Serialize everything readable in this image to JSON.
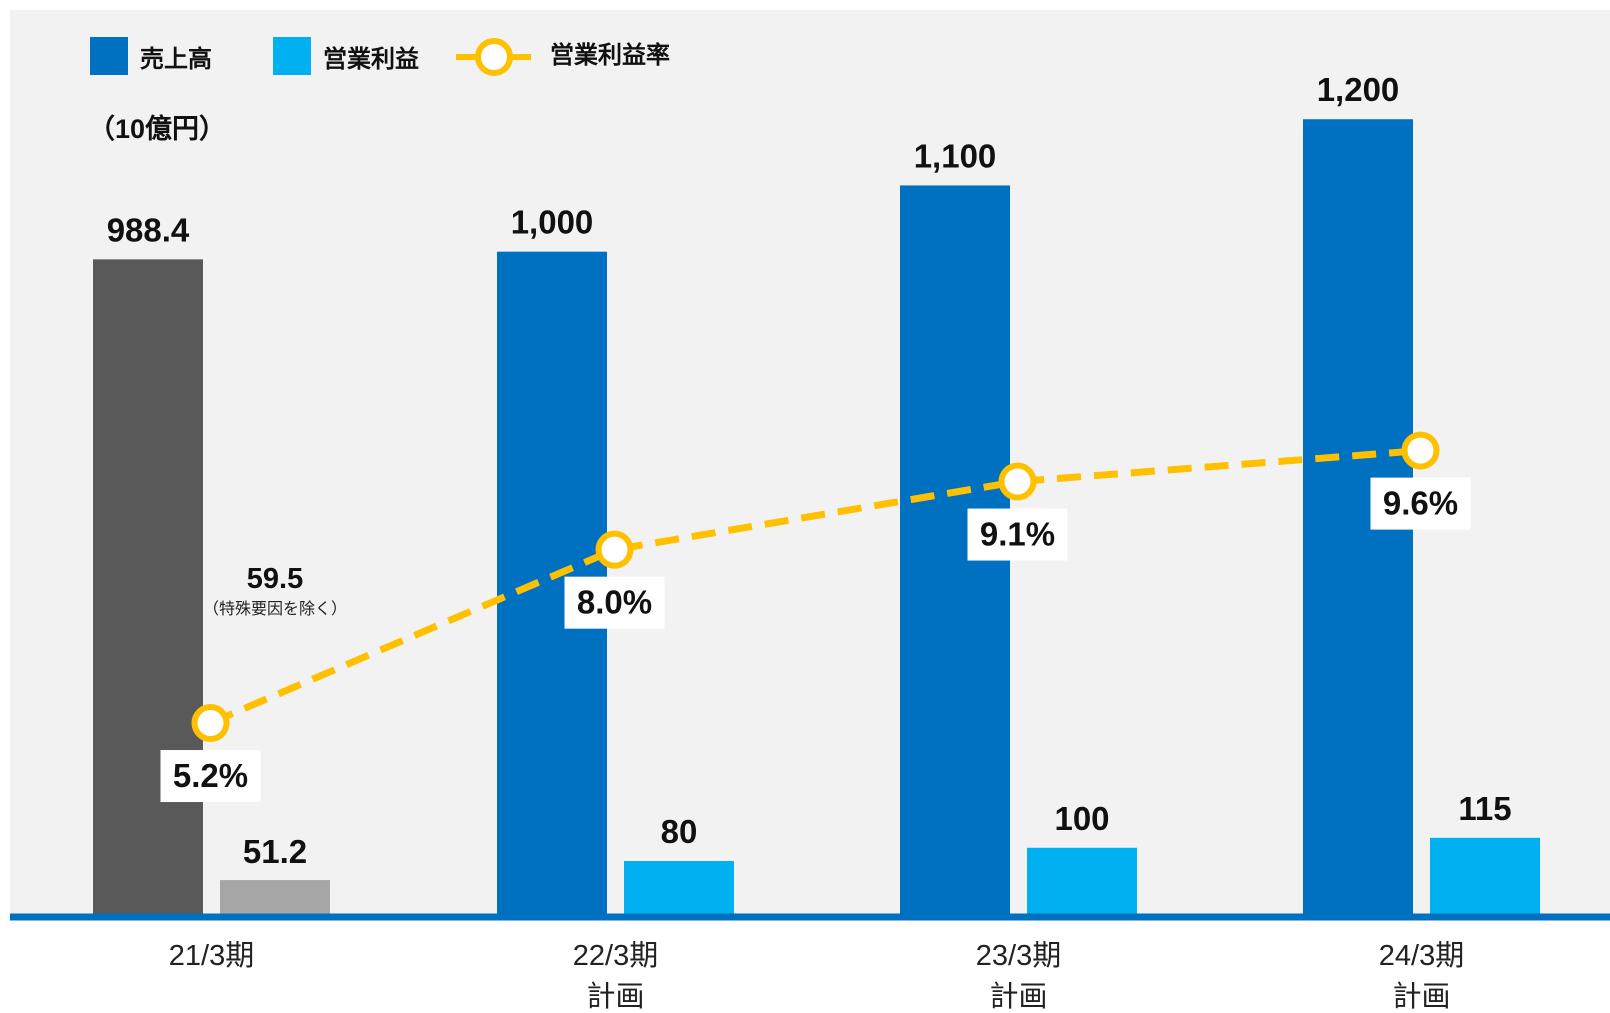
{
  "chart_data": {
    "type": "bar",
    "unit_label": "（10億円）",
    "legend": {
      "position": "top-left",
      "items": [
        {
          "name": "売上高",
          "color": "#0070C0",
          "kind": "bar"
        },
        {
          "name": "営業利益",
          "color": "#00B0F0",
          "kind": "bar"
        },
        {
          "name": "営業利益率",
          "color": "#FFC000",
          "kind": "line"
        }
      ]
    },
    "categories": [
      {
        "line1": "21/3期",
        "line2": ""
      },
      {
        "line1": "22/3期",
        "line2": "計画"
      },
      {
        "line1": "23/3期",
        "line2": "計画"
      },
      {
        "line1": "24/3期",
        "line2": "計画"
      }
    ],
    "series": [
      {
        "name": "売上高",
        "values": [
          988.4,
          1000,
          1100,
          1200
        ],
        "labels": [
          "988.4",
          "1,000",
          "1,100",
          "1,200"
        ],
        "colors": [
          "#595959",
          "#0070C0",
          "#0070C0",
          "#0070C0"
        ]
      },
      {
        "name": "営業利益",
        "values": [
          51.2,
          80,
          100,
          115
        ],
        "labels": [
          "51.2",
          "80",
          "100",
          "115"
        ],
        "colors": [
          "#A6A6A6",
          "#00B0F0",
          "#00B0F0",
          "#00B0F0"
        ]
      },
      {
        "name": "営業利益率",
        "type": "line",
        "values": [
          5.2,
          8.0,
          9.1,
          9.6
        ],
        "labels": [
          "5.2%",
          "8.0%",
          "9.1%",
          "9.6%"
        ],
        "color": "#FFC000",
        "line_style": "dashed"
      }
    ],
    "annotations": [
      {
        "category_index": 0,
        "series": "営業利益",
        "value_text": "59.5",
        "note": "（特殊要因を除く）"
      }
    ],
    "ylim": [
      0,
      1380
    ],
    "rate_scale": [
      0,
      12
    ],
    "colors": {
      "background": "#F2F2F2",
      "axis": "#0070C0",
      "label_box": "#ffffff"
    }
  }
}
